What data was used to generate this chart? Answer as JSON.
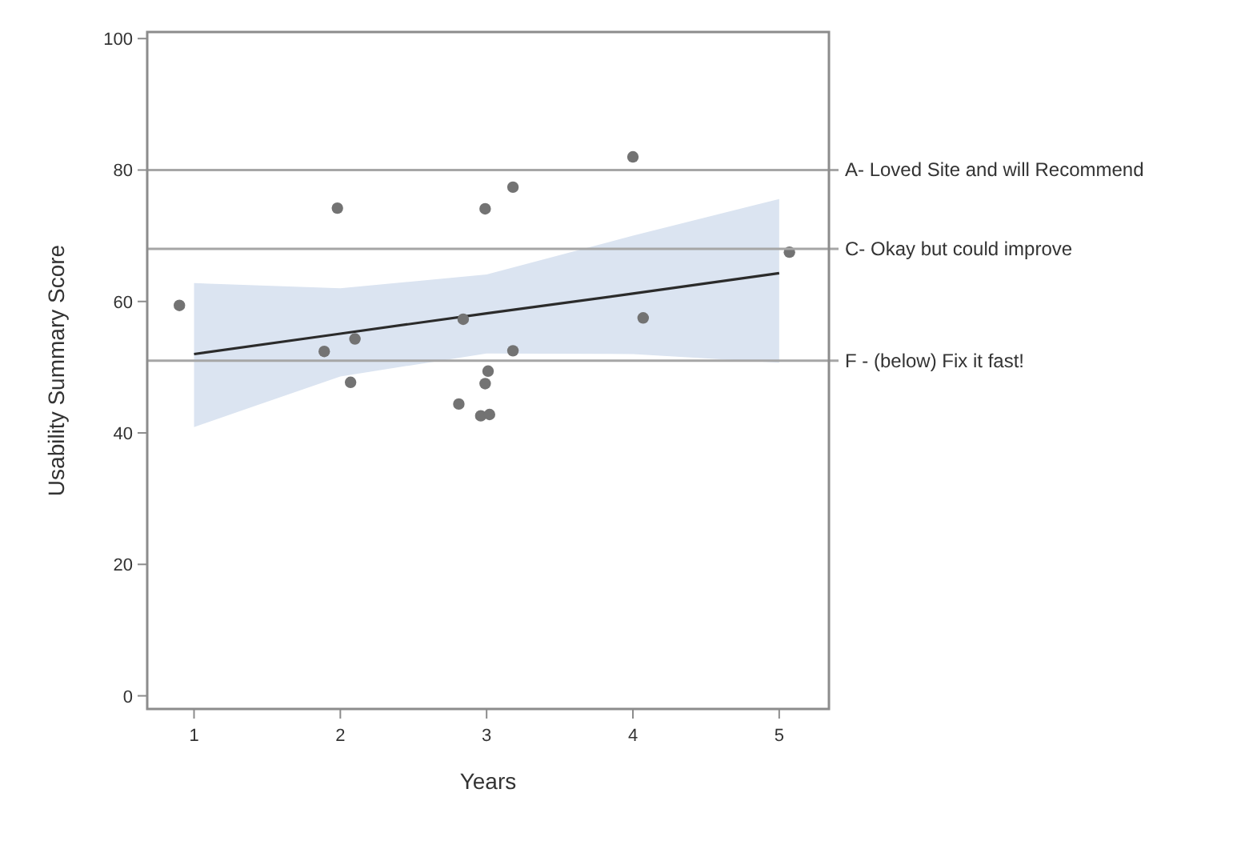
{
  "chart_data": {
    "type": "scatter",
    "xlabel": "Years",
    "ylabel": "Usability Summary Score",
    "xlim": [
      0.68,
      5.34
    ],
    "ylim": [
      -2,
      101
    ],
    "xticks": [
      1,
      2,
      3,
      4,
      5
    ],
    "yticks": [
      0,
      20,
      40,
      60,
      80,
      100
    ],
    "grid": false,
    "series": [
      {
        "color": "#737373",
        "marker": "circle",
        "x": [
          0.9,
          1.98,
          1.89,
          2.1,
          2.07,
          2.84,
          2.81,
          2.99,
          3.18,
          3.18,
          3.01,
          2.99,
          2.96,
          3.02,
          4.0,
          4.07,
          5.07
        ],
        "values": [
          59.4,
          74.2,
          52.4,
          54.3,
          47.7,
          57.3,
          44.4,
          74.1,
          77.4,
          52.5,
          49.4,
          47.5,
          42.6,
          42.8,
          82,
          57.5,
          67.5
        ]
      },
      {
        "type": "line",
        "color": "#2b2b2b",
        "line_style": "solid",
        "x": [
          1,
          2,
          3,
          4,
          5
        ],
        "values": [
          52,
          55.1,
          58.2,
          61.2,
          64.3
        ],
        "lower": [
          40.9,
          48.6,
          52.1,
          52,
          50.7
        ],
        "upper": [
          62.8,
          62,
          64.1,
          70,
          75.6
        ]
      }
    ],
    "ref_lines": [
      {
        "axis": "y",
        "value": 80,
        "label": "A- Loved Site and will Recommend",
        "color": "#a6a6a6"
      },
      {
        "axis": "y",
        "value": 68,
        "label": "C- Okay but could improve",
        "color": "#a6a6a6"
      },
      {
        "axis": "y",
        "value": 51,
        "label": "F - (below) Fix it fast!",
        "color": "#a6a6a6"
      }
    ]
  }
}
